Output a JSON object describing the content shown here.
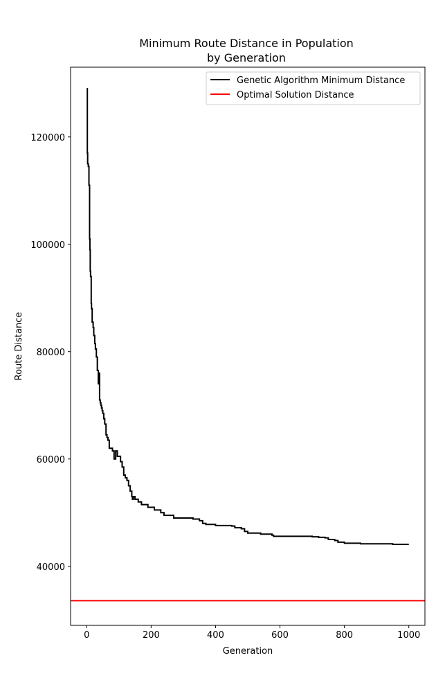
{
  "chart_data": {
    "type": "line",
    "title_line1": "Minimum Route Distance in Population",
    "title_line2": "by Generation",
    "xlabel": "Generation",
    "ylabel": "Route Distance",
    "xlim": [
      -50,
      1050
    ],
    "ylim": [
      29000,
      133000
    ],
    "xticks": [
      0,
      200,
      400,
      600,
      800,
      1000
    ],
    "yticks": [
      40000,
      60000,
      80000,
      100000,
      120000
    ],
    "xtick_labels": [
      "0",
      "200",
      "400",
      "600",
      "800",
      "1000"
    ],
    "ytick_labels": [
      "40000",
      "60000",
      "80000",
      "100000",
      "120000"
    ],
    "legend_position": "top-right",
    "grid": false,
    "series": [
      {
        "name": "Genetic Algorithm Minimum Distance",
        "color": "#000000",
        "x": [
          0,
          2,
          3,
          5,
          7,
          9,
          10,
          11,
          12,
          14,
          15,
          17,
          20,
          22,
          25,
          27,
          30,
          33,
          36,
          38,
          40,
          42,
          44,
          46,
          48,
          50,
          53,
          56,
          60,
          63,
          66,
          70,
          75,
          80,
          85,
          90,
          95,
          100,
          105,
          110,
          115,
          120,
          125,
          130,
          135,
          140,
          142,
          145,
          150,
          155,
          160,
          170,
          175,
          180,
          190,
          200,
          210,
          220,
          230,
          240,
          250,
          260,
          270,
          280,
          300,
          310,
          320,
          330,
          340,
          350,
          360,
          370,
          380,
          400,
          450,
          460,
          480,
          490,
          500,
          520,
          540,
          560,
          575,
          580,
          600,
          620,
          650,
          700,
          720,
          740,
          750,
          770,
          780,
          800,
          820,
          850,
          900,
          950,
          1000
        ],
        "y": [
          129000,
          117000,
          115000,
          114500,
          111000,
          101000,
          99000,
          95000,
          94000,
          89000,
          88000,
          85500,
          84500,
          83000,
          81500,
          80500,
          79000,
          76500,
          74000,
          76000,
          71000,
          70500,
          70000,
          69500,
          69000,
          68500,
          67500,
          66500,
          64500,
          64000,
          63500,
          62000,
          62000,
          61500,
          60000,
          61500,
          60500,
          60500,
          59500,
          58500,
          57000,
          56500,
          56000,
          55000,
          54000,
          53000,
          52500,
          53000,
          52500,
          52500,
          52000,
          51500,
          51500,
          51500,
          51000,
          51000,
          50500,
          50500,
          50000,
          49500,
          49500,
          49500,
          49000,
          49000,
          49000,
          49000,
          49000,
          48800,
          48800,
          48500,
          48000,
          47800,
          47800,
          47600,
          47500,
          47200,
          47000,
          46500,
          46200,
          46200,
          46000,
          46000,
          45800,
          45600,
          45600,
          45600,
          45600,
          45500,
          45400,
          45300,
          45000,
          44800,
          44500,
          44300,
          44300,
          44200,
          44200,
          44100,
          44100
        ],
        "points": [
          [
            0,
            129000
          ],
          [
            2,
            117000
          ],
          [
            3,
            115000
          ],
          [
            5,
            114500
          ],
          [
            7,
            111000
          ],
          [
            9,
            101000
          ],
          [
            10,
            99000
          ],
          [
            11,
            95000
          ],
          [
            12,
            94000
          ],
          [
            14,
            89000
          ],
          [
            15,
            88000
          ],
          [
            17,
            85500
          ],
          [
            20,
            84500
          ],
          [
            22,
            83000
          ],
          [
            25,
            81500
          ],
          [
            27,
            80500
          ],
          [
            30,
            79000
          ],
          [
            33,
            76500
          ],
          [
            36,
            74000
          ],
          [
            38,
            76000
          ],
          [
            40,
            71000
          ],
          [
            42,
            70500
          ],
          [
            44,
            70000
          ],
          [
            46,
            69500
          ],
          [
            48,
            69000
          ],
          [
            50,
            68500
          ],
          [
            53,
            67500
          ],
          [
            56,
            66500
          ],
          [
            60,
            64500
          ],
          [
            63,
            64000
          ],
          [
            66,
            63500
          ],
          [
            70,
            62000
          ],
          [
            75,
            62000
          ],
          [
            80,
            61500
          ],
          [
            85,
            60000
          ],
          [
            90,
            61500
          ],
          [
            95,
            60500
          ],
          [
            100,
            60500
          ],
          [
            105,
            59500
          ],
          [
            110,
            58500
          ],
          [
            115,
            57000
          ],
          [
            120,
            56500
          ],
          [
            125,
            56000
          ],
          [
            130,
            55000
          ],
          [
            135,
            54000
          ],
          [
            140,
            53000
          ],
          [
            142,
            52500
          ],
          [
            145,
            53000
          ],
          [
            150,
            52500
          ],
          [
            155,
            52500
          ],
          [
            160,
            52000
          ],
          [
            170,
            51500
          ],
          [
            175,
            51500
          ],
          [
            180,
            51500
          ],
          [
            190,
            51000
          ],
          [
            200,
            51000
          ],
          [
            210,
            50500
          ],
          [
            220,
            50500
          ],
          [
            230,
            50000
          ],
          [
            240,
            49500
          ],
          [
            250,
            49500
          ],
          [
            260,
            49500
          ],
          [
            270,
            49000
          ],
          [
            280,
            49000
          ],
          [
            300,
            49000
          ],
          [
            310,
            49000
          ],
          [
            320,
            49000
          ],
          [
            330,
            48800
          ],
          [
            340,
            48800
          ],
          [
            350,
            48500
          ],
          [
            360,
            48000
          ],
          [
            370,
            47800
          ],
          [
            380,
            47800
          ],
          [
            400,
            47600
          ],
          [
            450,
            47500
          ],
          [
            460,
            47200
          ],
          [
            480,
            47000
          ],
          [
            490,
            46500
          ],
          [
            500,
            46200
          ],
          [
            520,
            46200
          ],
          [
            540,
            46000
          ],
          [
            560,
            46000
          ],
          [
            575,
            45800
          ],
          [
            580,
            45600
          ],
          [
            600,
            45600
          ],
          [
            620,
            45600
          ],
          [
            650,
            45600
          ],
          [
            700,
            45500
          ],
          [
            720,
            45400
          ],
          [
            740,
            45300
          ],
          [
            750,
            45000
          ],
          [
            770,
            44800
          ],
          [
            780,
            44500
          ],
          [
            800,
            44300
          ],
          [
            820,
            44300
          ],
          [
            850,
            44200
          ],
          [
            900,
            44200
          ],
          [
            950,
            44100
          ],
          [
            1000,
            44100
          ]
        ]
      },
      {
        "name": "Optimal Solution Distance",
        "color": "#ff0000",
        "type": "hline",
        "y": 33600
      }
    ]
  }
}
